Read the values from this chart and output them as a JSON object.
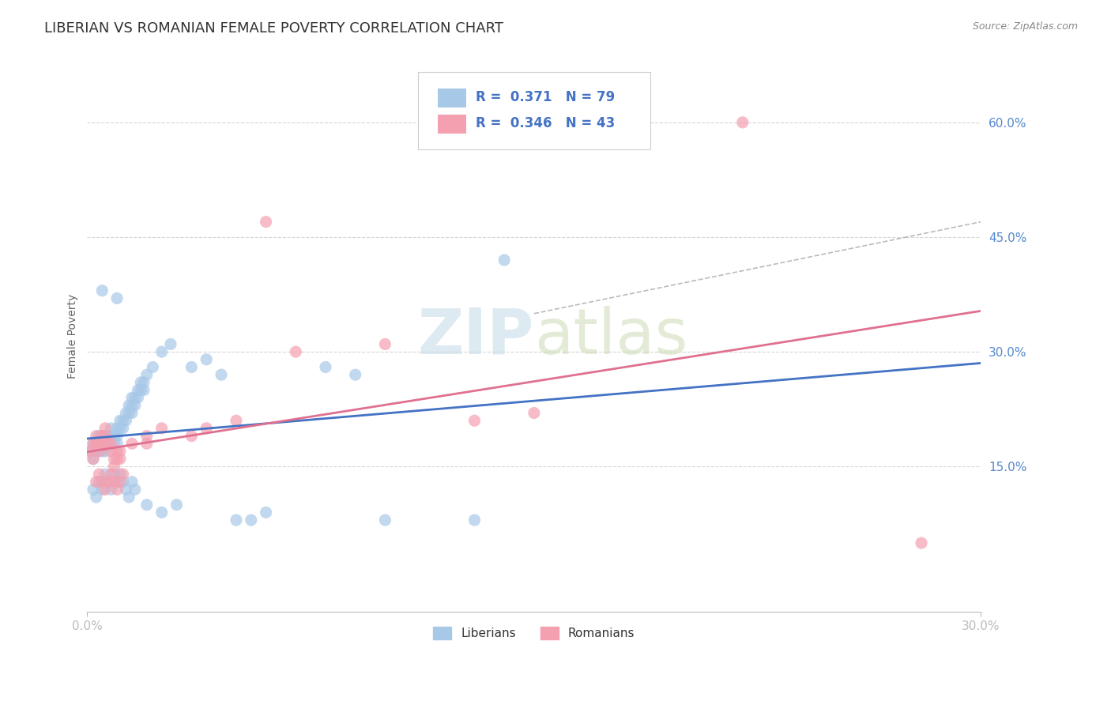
{
  "title": "LIBERIAN VS ROMANIAN FEMALE POVERTY CORRELATION CHART",
  "source": "Source: ZipAtlas.com",
  "ylabel": "Female Poverty",
  "xlim": [
    0.0,
    0.3
  ],
  "ylim": [
    -0.04,
    0.68
  ],
  "xticks": [
    0.0,
    0.3
  ],
  "xticklabels": [
    "0.0%",
    "30.0%"
  ],
  "ytick_values": [
    0.15,
    0.3,
    0.45,
    0.6
  ],
  "ytick_labels": [
    "15.0%",
    "30.0%",
    "45.0%",
    "60.0%"
  ],
  "liberian_color": "#a8c8e8",
  "romanian_color": "#f4a0b0",
  "liberian_R": 0.371,
  "liberian_N": 79,
  "romanian_R": 0.346,
  "romanian_N": 43,
  "trend_liberian_color": "#4472c4",
  "trend_romanian_color": "#e07090",
  "background_color": "#ffffff",
  "grid_color": "#cccccc",
  "tick_color": "#5588cc",
  "title_color": "#333333",
  "source_color": "#888888",
  "watermark_color": "#d8e8f0",
  "legend_edge_color": "#dddddd"
}
